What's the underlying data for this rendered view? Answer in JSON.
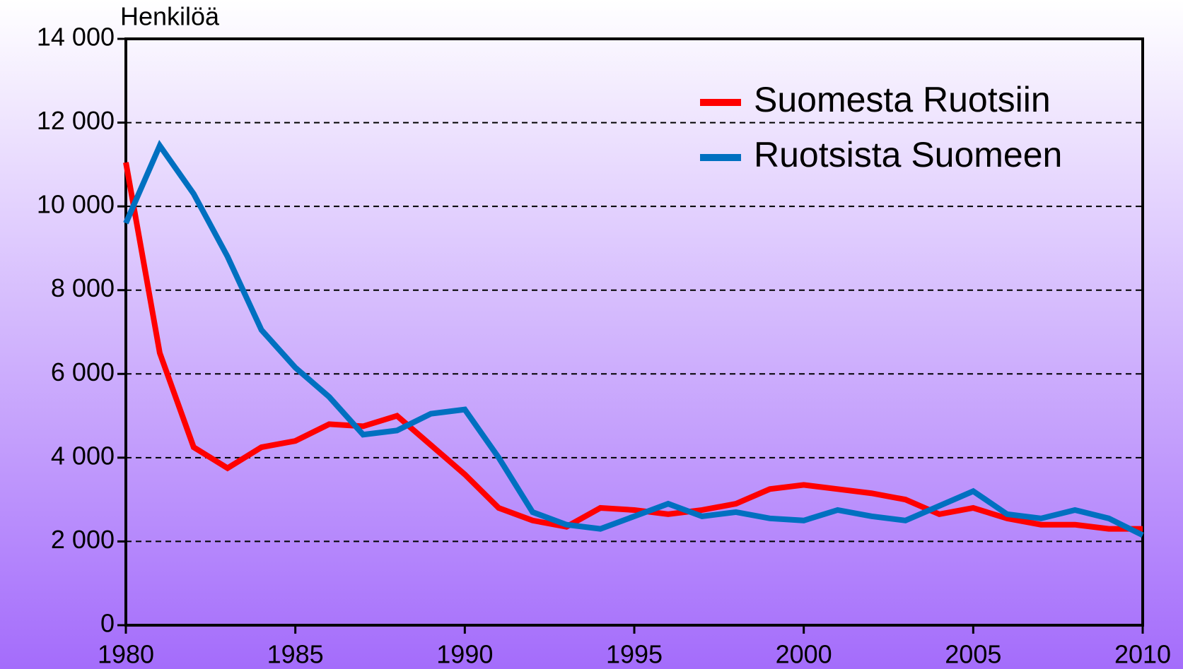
{
  "chart_data": {
    "type": "line",
    "y_axis_label": "Henkilöä",
    "x": [
      1980,
      1981,
      1982,
      1983,
      1984,
      1985,
      1986,
      1987,
      1988,
      1989,
      1990,
      1991,
      1992,
      1993,
      1994,
      1995,
      1996,
      1997,
      1998,
      1999,
      2000,
      2001,
      2002,
      2003,
      2004,
      2005,
      2006,
      2007,
      2008,
      2009,
      2010
    ],
    "series": [
      {
        "name": "Suomesta Ruotsiin",
        "color": "#ff0000",
        "values": [
          11050,
          6500,
          4250,
          3750,
          4250,
          4400,
          4800,
          4750,
          5000,
          4300,
          3600,
          2800,
          2500,
          2350,
          2800,
          2750,
          2650,
          2750,
          2900,
          3250,
          3350,
          3250,
          3150,
          3000,
          2650,
          2800,
          2550,
          2400,
          2400,
          2300,
          2300
        ]
      },
      {
        "name": "Ruotsista Suomeen",
        "color": "#0070c0",
        "values": [
          9600,
          11450,
          10300,
          8800,
          7050,
          6150,
          5450,
          4550,
          4650,
          5050,
          5150,
          4000,
          2700,
          2400,
          2300,
          2600,
          2900,
          2600,
          2700,
          2550,
          2500,
          2750,
          2600,
          2500,
          2850,
          3200,
          2650,
          2550,
          2750,
          2550,
          2150
        ]
      }
    ],
    "xlim": [
      1980,
      2010
    ],
    "xticks": [
      1980,
      1985,
      1990,
      1995,
      2000,
      2005,
      2010
    ],
    "ylim": [
      0,
      14000
    ],
    "yticks": [
      0,
      {
        "value": 2000,
        "label": "2 000"
      },
      {
        "value": 4000,
        "label": "4 000"
      },
      {
        "value": 6000,
        "label": "6 000"
      },
      {
        "value": 8000,
        "label": "8 000"
      },
      {
        "value": 10000,
        "label": "10 000"
      },
      {
        "value": 12000,
        "label": "12 000"
      },
      {
        "value": 14000,
        "label": "14 000"
      }
    ],
    "grid": true,
    "legend": "upper right"
  }
}
